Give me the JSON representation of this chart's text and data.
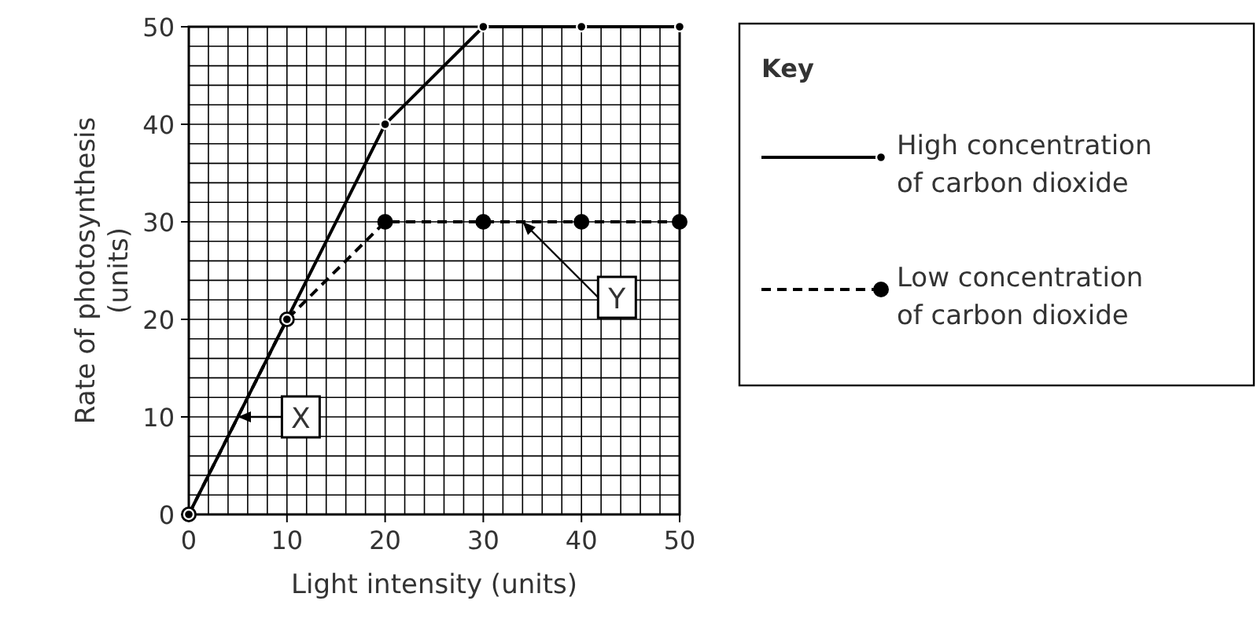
{
  "chart_data": {
    "type": "line",
    "xlabel": "Light intensity (units)",
    "ylabel": "Rate of photosynthesis\n(units)",
    "legend_title": "Key",
    "legend": "top right",
    "grid": true,
    "marker": "circle",
    "x": [
      0,
      10,
      20,
      30,
      40,
      50
    ],
    "xlim": [
      0,
      50
    ],
    "ylim": [
      0,
      50
    ],
    "xticks": [
      0,
      {
        "value": 2,
        "label": null
      },
      {
        "value": 4,
        "label": null
      },
      {
        "value": 6,
        "label": null
      },
      {
        "value": 8,
        "label": null
      },
      10,
      {
        "value": 12,
        "label": null
      },
      {
        "value": 14,
        "label": null
      },
      {
        "value": 16,
        "label": null
      },
      {
        "value": 18,
        "label": null
      },
      20,
      {
        "value": 22,
        "label": null
      },
      {
        "value": 24,
        "label": null
      },
      {
        "value": 26,
        "label": null
      },
      {
        "value": 28,
        "label": null
      },
      30,
      {
        "value": 32,
        "label": null
      },
      {
        "value": 34,
        "label": null
      },
      {
        "value": 36,
        "label": null
      },
      {
        "value": 38,
        "label": null
      },
      40,
      {
        "value": 42,
        "label": null
      },
      {
        "value": 44,
        "label": null
      },
      {
        "value": 46,
        "label": null
      },
      {
        "value": 48,
        "label": null
      },
      50
    ],
    "yticks": [
      0,
      {
        "value": 2,
        "label": null
      },
      {
        "value": 4,
        "label": null
      },
      {
        "value": 6,
        "label": null
      },
      {
        "value": 8,
        "label": null
      },
      10,
      {
        "value": 12,
        "label": null
      },
      {
        "value": 14,
        "label": null
      },
      {
        "value": 16,
        "label": null
      },
      {
        "value": 18,
        "label": null
      },
      20,
      {
        "value": 22,
        "label": null
      },
      {
        "value": 24,
        "label": null
      },
      {
        "value": 26,
        "label": null
      },
      {
        "value": 28,
        "label": null
      },
      30,
      {
        "value": 32,
        "label": null
      },
      {
        "value": 34,
        "label": null
      },
      {
        "value": 36,
        "label": null
      },
      {
        "value": 38,
        "label": null
      },
      40,
      {
        "value": 42,
        "label": null
      },
      {
        "value": 44,
        "label": null
      },
      {
        "value": 46,
        "label": null
      },
      {
        "value": 48,
        "label": null
      },
      50
    ],
    "series": [
      {
        "name": "High concentration\nof carbon dioxide",
        "color": "#000000",
        "line_style": "solid",
        "values": [
          0,
          20,
          40,
          50,
          50,
          50
        ]
      },
      {
        "name": "Low concentration\nof carbon dioxide",
        "color": "#000000",
        "line_style": "dashed",
        "values": [
          0,
          20,
          30,
          30,
          30,
          30
        ]
      }
    ],
    "annotations": [
      {
        "text": "X",
        "x": 5,
        "y": 10
      },
      {
        "text": "Y",
        "x": 34,
        "y": 30
      }
    ]
  }
}
